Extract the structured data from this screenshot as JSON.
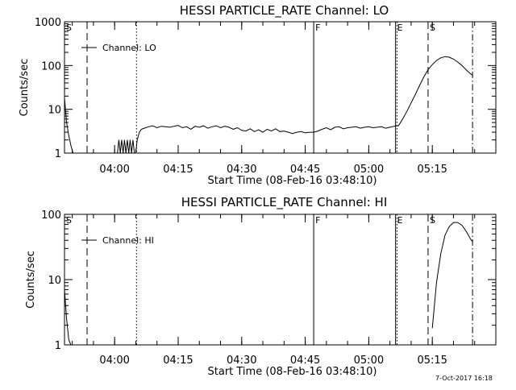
{
  "timestamp": "7-Oct-2017 16:18",
  "chart_data": [
    {
      "type": "line",
      "title": "HESSI PARTICLE_RATE Channel: LO",
      "xlabel": "Start Time (08-Feb-16 03:48:10)",
      "ylabel": "Counts/sec",
      "yscale": "log",
      "xlim": [
        "03:48:10",
        "05:30:00"
      ],
      "ylim": [
        1,
        1000
      ],
      "xticks": [
        "04:00",
        "04:15",
        "04:30",
        "04:45",
        "05:00",
        "05:15"
      ],
      "yticks": [
        "1",
        "10",
        "100",
        "1000"
      ],
      "legend": {
        "label": "Channel: LO",
        "placement": "top-left"
      },
      "markers": [
        {
          "label": "S",
          "time": "03:48:10",
          "style": "solid"
        },
        {
          "label": "",
          "time": "03:53:30",
          "style": "dashed"
        },
        {
          "label": "",
          "time": "04:05:10",
          "style": "dotted"
        },
        {
          "label": "F",
          "time": "04:47:00",
          "style": "solid"
        },
        {
          "label": "E",
          "time": "05:06:20",
          "style": "solid"
        },
        {
          "label": "",
          "time": "05:06:40",
          "style": "dotted"
        },
        {
          "label": "S",
          "time": "05:14:00",
          "style": "dashed"
        },
        {
          "label": "",
          "time": "05:24:30",
          "style": "dashdot"
        }
      ],
      "series": [
        {
          "name": "Channel: LO",
          "x": [
            "03:48:10",
            "03:48:40",
            "03:49:10",
            "03:49:40",
            "03:50:10",
            "03:50:40",
            "04:00:40",
            "04:01:00",
            "04:01:20",
            "04:01:40",
            "04:02:00",
            "04:02:20",
            "04:02:40",
            "04:03:00",
            "04:03:20",
            "04:03:40",
            "04:04:00",
            "04:04:20",
            "04:04:40",
            "04:05:00",
            "04:05:20",
            "04:05:50",
            "04:06:20",
            "04:07:00",
            "04:08:00",
            "04:09:00",
            "04:10:00",
            "04:11:00",
            "04:12:00",
            "04:13:00",
            "04:14:00",
            "04:15:00",
            "04:16:00",
            "04:17:00",
            "04:18:00",
            "04:19:00",
            "04:20:00",
            "04:21:00",
            "04:22:00",
            "04:23:00",
            "04:24:00",
            "04:25:00",
            "04:26:00",
            "04:27:00",
            "04:28:00",
            "04:29:00",
            "04:30:00",
            "04:31:00",
            "04:32:00",
            "04:33:00",
            "04:34:00",
            "04:35:00",
            "04:36:00",
            "04:37:00",
            "04:38:00",
            "04:39:00",
            "04:40:00",
            "04:41:00",
            "04:42:00",
            "04:43:00",
            "04:44:00",
            "04:45:00",
            "04:46:00",
            "04:47:00",
            "04:48:00",
            "04:49:00",
            "04:50:00",
            "04:51:00",
            "04:52:00",
            "04:53:00",
            "04:54:00",
            "04:55:00",
            "04:56:00",
            "04:57:00",
            "04:58:00",
            "04:59:00",
            "05:00:00",
            "05:01:00",
            "05:02:00",
            "05:03:00",
            "05:04:00",
            "05:05:00",
            "05:06:00",
            "05:06:30",
            "05:07:00",
            "05:08:00",
            "05:09:00",
            "05:10:00",
            "05:11:00",
            "05:12:00",
            "05:13:00",
            "05:14:00",
            "05:15:00",
            "05:16:00",
            "05:17:00",
            "05:18:00",
            "05:19:00",
            "05:20:00",
            "05:21:00",
            "05:22:00",
            "05:23:00",
            "05:24:00",
            "05:24:30"
          ],
          "y": [
            18,
            5,
            2.5,
            1.5,
            1,
            0.9,
            1,
            2,
            1,
            2,
            1,
            2,
            1,
            2,
            1,
            2,
            1,
            2,
            1,
            1,
            2,
            3,
            3.5,
            3.7,
            4,
            4.2,
            3.8,
            4.1,
            4,
            3.9,
            4.1,
            4.3,
            3.8,
            4,
            3.5,
            4.1,
            3.9,
            4.2,
            3.7,
            4,
            4.2,
            3.8,
            4.1,
            3.9,
            3.5,
            3.8,
            3.3,
            3.2,
            3.6,
            3.1,
            3.4,
            3,
            3.5,
            3.2,
            3.6,
            3.1,
            3.2,
            3,
            2.8,
            3,
            3.1,
            2.9,
            3,
            3,
            3.2,
            3.5,
            3.8,
            3.4,
            3.9,
            4,
            3.6,
            3.8,
            3.9,
            4,
            3.7,
            3.9,
            4,
            3.8,
            3.9,
            4,
            3.7,
            3.9,
            4.1,
            4.2,
            4.2,
            6,
            9,
            14,
            22,
            35,
            55,
            80,
            105,
            130,
            150,
            160,
            155,
            140,
            120,
            100,
            80,
            65,
            60
          ]
        }
      ]
    },
    {
      "type": "line",
      "title": "HESSI PARTICLE_RATE Channel: HI",
      "xlabel": "Start Time (08-Feb-16 03:48:10)",
      "ylabel": "Counts/sec",
      "yscale": "log",
      "xlim": [
        "03:48:10",
        "05:30:00"
      ],
      "ylim": [
        1,
        100
      ],
      "xticks": [
        "04:00",
        "04:15",
        "04:30",
        "04:45",
        "05:00",
        "05:15"
      ],
      "yticks": [
        "1",
        "10",
        "100"
      ],
      "legend": {
        "label": "Channel: HI",
        "placement": "top-left"
      },
      "markers": [
        {
          "label": "S",
          "time": "03:48:10",
          "style": "solid"
        },
        {
          "label": "",
          "time": "03:53:30",
          "style": "dashed"
        },
        {
          "label": "",
          "time": "04:05:10",
          "style": "dotted"
        },
        {
          "label": "F",
          "time": "04:47:00",
          "style": "solid"
        },
        {
          "label": "E",
          "time": "05:06:20",
          "style": "solid"
        },
        {
          "label": "",
          "time": "05:06:40",
          "style": "dotted"
        },
        {
          "label": "S",
          "time": "05:14:00",
          "style": "dashed"
        },
        {
          "label": "",
          "time": "05:24:30",
          "style": "dashdot"
        }
      ],
      "series": [
        {
          "name": "Channel: HI",
          "x": [
            "03:48:10",
            "03:48:40",
            "03:49:10",
            "03:49:40",
            "05:15:00",
            "05:16:00",
            "05:17:00",
            "05:18:00",
            "05:19:00",
            "05:20:00",
            "05:21:00",
            "05:22:00",
            "05:23:00",
            "05:24:00",
            "05:24:30"
          ],
          "y": [
            7,
            2.5,
            1.2,
            1,
            1.8,
            9,
            25,
            48,
            65,
            75,
            75,
            68,
            55,
            42,
            38
          ]
        }
      ]
    }
  ]
}
